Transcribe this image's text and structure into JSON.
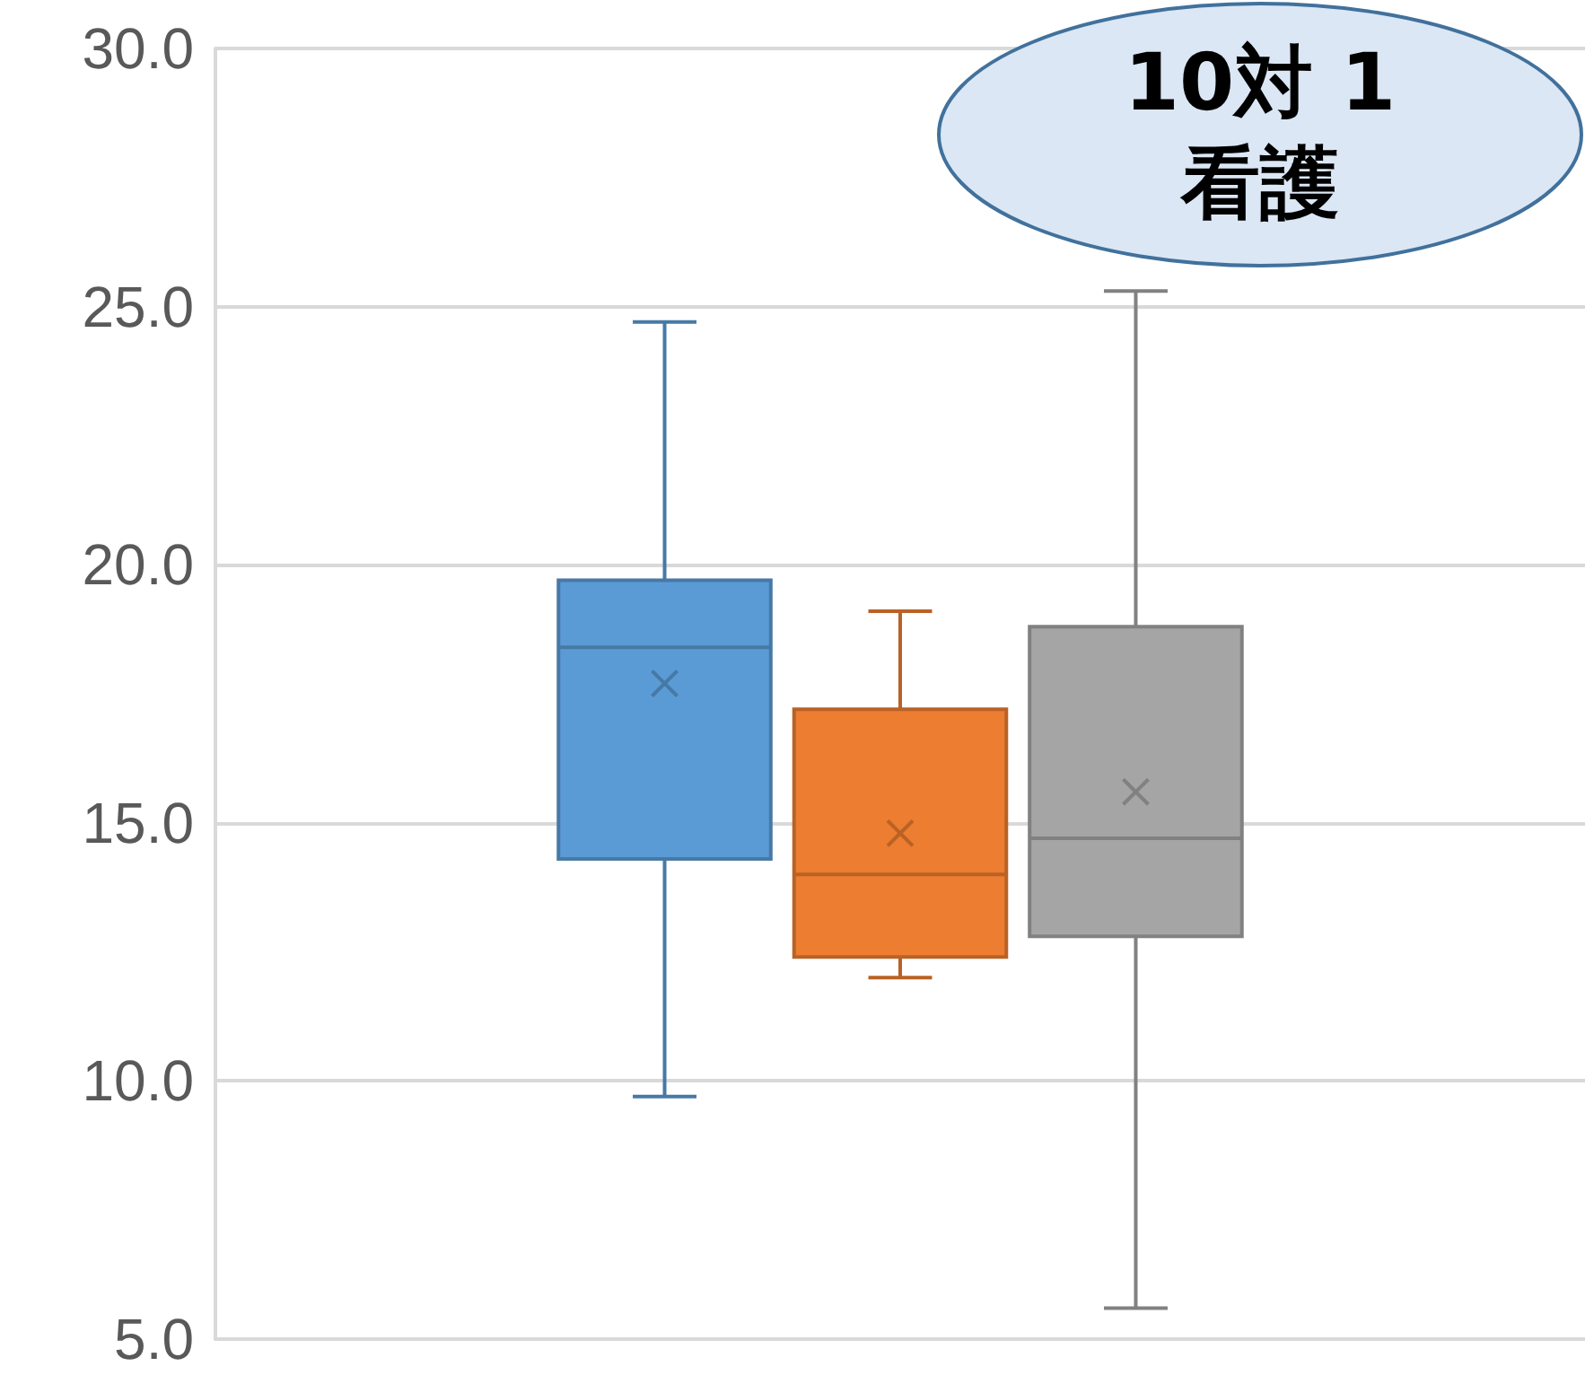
{
  "chart_data": {
    "type": "box",
    "categories": [
      null
    ],
    "series": [
      {
        "color": "#5b9bd5",
        "boxes": [
          {
            "low": 9.7,
            "q1": 14.3,
            "median": 18.4,
            "q3": 19.7,
            "high": 24.7,
            "mean": 17.7
          }
        ]
      },
      {
        "color": "#ed7d31",
        "boxes": [
          {
            "low": 12.0,
            "q1": 12.4,
            "median": 14.0,
            "q3": 17.2,
            "high": 19.1,
            "mean": 14.8
          }
        ]
      },
      {
        "color": "#a5a5a5",
        "boxes": [
          {
            "low": 5.6,
            "q1": 12.8,
            "median": 14.7,
            "q3": 18.8,
            "high": 25.3,
            "mean": 15.6
          }
        ]
      }
    ],
    "ylim": [
      5,
      30
    ],
    "yticks": [
      {
        "value": 5,
        "label": "5.0"
      },
      {
        "value": 10,
        "label": "10.0"
      },
      {
        "value": 15,
        "label": "15.0"
      },
      {
        "value": 20,
        "label": "20.0"
      },
      {
        "value": 25,
        "label": "25.0"
      },
      {
        "value": 30,
        "label": "30.0"
      }
    ],
    "grid": "y",
    "annotations": [
      "10対 1\n看護"
    ]
  }
}
